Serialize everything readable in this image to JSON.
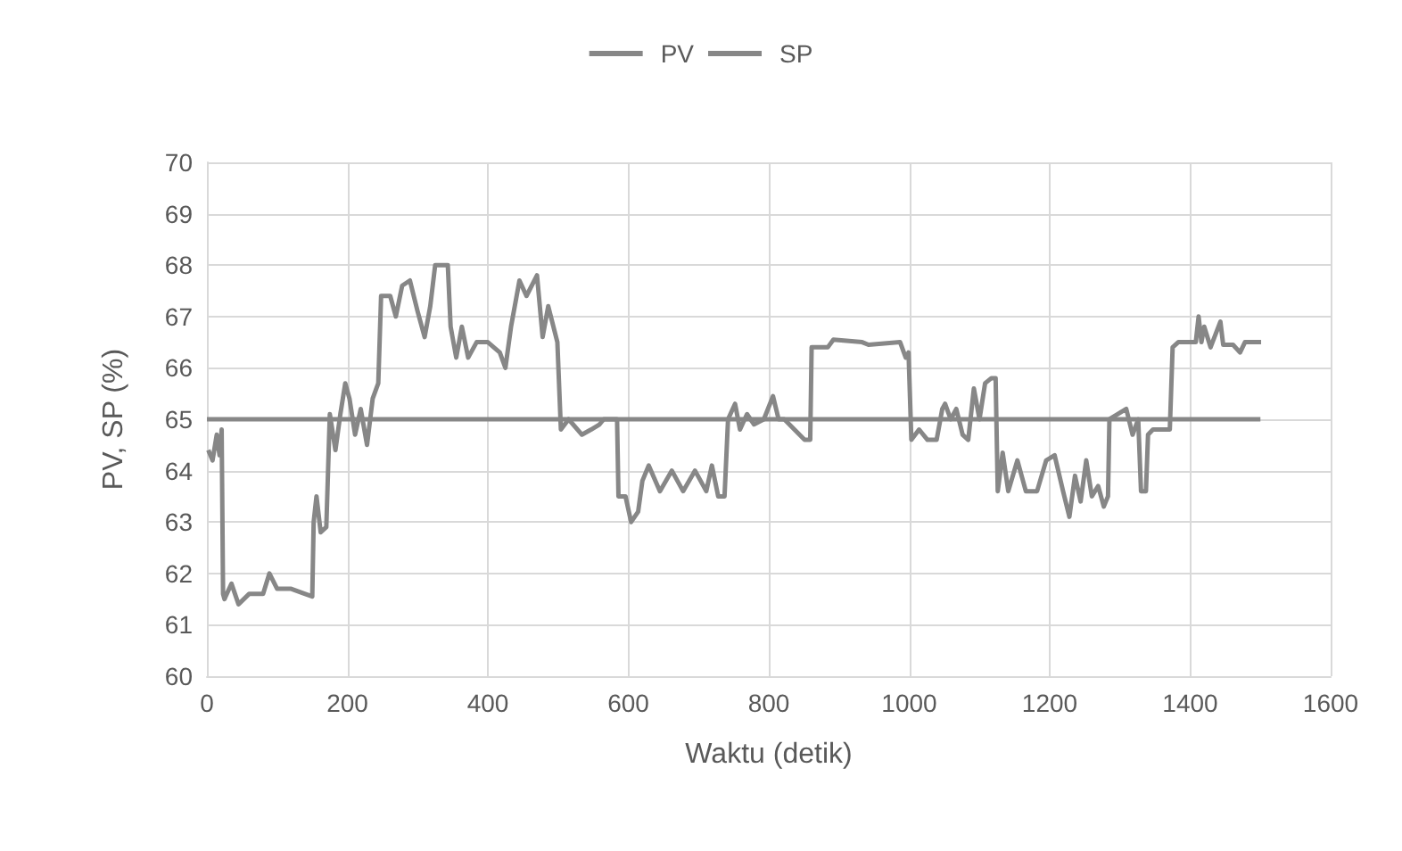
{
  "chart_data": {
    "type": "line",
    "xlabel": "Waktu (detik)",
    "ylabel": "PV, SP (%)",
    "xlim": [
      0,
      1600
    ],
    "xticks": [
      0,
      200,
      400,
      600,
      800,
      1000,
      1200,
      1400,
      1600
    ],
    "ylim": [
      60,
      70
    ],
    "yticks": [
      60,
      61,
      62,
      63,
      64,
      65,
      66,
      67,
      68,
      69,
      70
    ],
    "grid": true,
    "legend": "top",
    "marker": "none",
    "line_style": "solid",
    "series": [
      {
        "name": "PV",
        "color": "#878787",
        "x": [
          2,
          8,
          14,
          18,
          21,
          23,
          25,
          35,
          45,
          60,
          80,
          89,
          100,
          120,
          140,
          150,
          152,
          156,
          162,
          170,
          175,
          183,
          190,
          197,
          203,
          211,
          219,
          228,
          236,
          244,
          248,
          261,
          269,
          278,
          289,
          300,
          310,
          318,
          325,
          343,
          347,
          355,
          363,
          372,
          384,
          400,
          417,
          425,
          433,
          445,
          455,
          470,
          478,
          486,
          499,
          504,
          515,
          534,
          547,
          559,
          565,
          584,
          586,
          596,
          604,
          614,
          620,
          629,
          645,
          662,
          678,
          695,
          711,
          719,
          728,
          737,
          742,
          752,
          759,
          769,
          779,
          793,
          806,
          814,
          822,
          851,
          859,
          861,
          884,
          892,
          933,
          942,
          987,
          995,
          999,
          1003,
          1014,
          1026,
          1039,
          1047,
          1051,
          1059,
          1067,
          1076,
          1084,
          1092,
          1100,
          1108,
          1117,
          1123,
          1126,
          1133,
          1141,
          1154,
          1166,
          1182,
          1195,
          1207,
          1219,
          1228,
          1236,
          1244,
          1252,
          1260,
          1269,
          1277,
          1283,
          1285,
          1297,
          1309,
          1318,
          1326,
          1330,
          1337,
          1340,
          1347,
          1371,
          1375,
          1383,
          1408,
          1412,
          1416,
          1420,
          1429,
          1443,
          1447,
          1461,
          1471,
          1478,
          1501
        ],
        "values": [
          64.4,
          64.2,
          64.7,
          64.3,
          64.8,
          61.6,
          61.5,
          61.8,
          61.4,
          61.6,
          61.6,
          62.0,
          61.7,
          61.7,
          61.6,
          61.55,
          63.0,
          63.5,
          62.8,
          62.9,
          65.1,
          64.4,
          65.1,
          65.7,
          65.4,
          64.7,
          65.2,
          64.5,
          65.4,
          65.7,
          67.4,
          67.4,
          67.0,
          67.6,
          67.7,
          67.1,
          66.6,
          67.2,
          68.0,
          68.0,
          66.8,
          66.2,
          66.8,
          66.2,
          66.5,
          66.5,
          66.3,
          66.0,
          66.8,
          67.7,
          67.4,
          67.8,
          66.6,
          67.2,
          66.5,
          64.8,
          65.0,
          64.7,
          64.8,
          64.9,
          65.0,
          65.0,
          63.5,
          63.5,
          63.0,
          63.2,
          63.8,
          64.1,
          63.6,
          64.0,
          63.6,
          64.0,
          63.6,
          64.1,
          63.5,
          63.5,
          65.0,
          65.3,
          64.8,
          65.1,
          64.9,
          65.0,
          65.45,
          65.0,
          65.0,
          64.6,
          64.6,
          66.4,
          66.4,
          66.55,
          66.5,
          66.45,
          66.5,
          66.2,
          66.3,
          64.6,
          64.8,
          64.6,
          64.6,
          65.2,
          65.3,
          65.0,
          65.2,
          64.7,
          64.6,
          65.6,
          65.0,
          65.7,
          65.8,
          65.8,
          63.6,
          64.35,
          63.6,
          64.2,
          63.6,
          63.6,
          64.2,
          64.3,
          63.6,
          63.1,
          63.9,
          63.4,
          64.2,
          63.5,
          63.7,
          63.3,
          63.5,
          65.0,
          65.1,
          65.2,
          64.7,
          65.0,
          63.6,
          63.6,
          64.7,
          64.8,
          64.8,
          66.4,
          66.5,
          66.5,
          67.0,
          66.5,
          66.8,
          66.4,
          66.9,
          66.45,
          66.45,
          66.3,
          66.5,
          66.5
        ]
      },
      {
        "name": "SP",
        "color": "#878787",
        "x": [
          0,
          1500
        ],
        "values": [
          65,
          65
        ]
      }
    ]
  }
}
